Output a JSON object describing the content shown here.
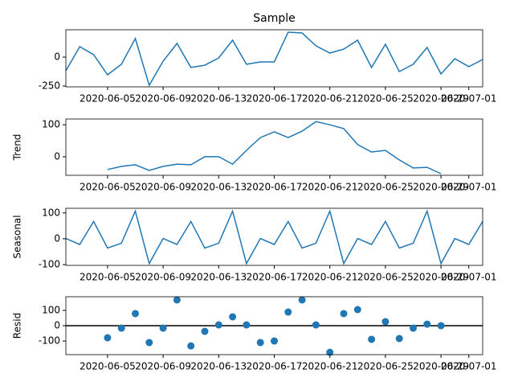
{
  "chart_data": [
    {
      "type": "line",
      "title": "Sample",
      "x": [
        "2020-06-02",
        "2020-06-03",
        "2020-06-04",
        "2020-06-05",
        "2020-06-06",
        "2020-06-07",
        "2020-06-08",
        "2020-06-09",
        "2020-06-10",
        "2020-06-11",
        "2020-06-12",
        "2020-06-13",
        "2020-06-14",
        "2020-06-15",
        "2020-06-16",
        "2020-06-17",
        "2020-06-18",
        "2020-06-19",
        "2020-06-20",
        "2020-06-21",
        "2020-06-22",
        "2020-06-23",
        "2020-06-24",
        "2020-06-25",
        "2020-06-26",
        "2020-06-27",
        "2020-06-28",
        "2020-06-29",
        "2020-06-30",
        "2020-07-01",
        "2020-07-02"
      ],
      "values": [
        -118,
        90,
        21,
        -153,
        -62,
        160,
        -243,
        -35,
        118,
        -90,
        -70,
        -7,
        146,
        -62,
        -42,
        -42,
        215,
        208,
        97,
        35,
        69,
        146,
        -90,
        111,
        -125,
        -62,
        83,
        -146,
        -14,
        -83,
        -21
      ],
      "color": "#1f77b4",
      "ylim": [
        -257,
        236
      ],
      "yticks": [
        -250,
        0
      ],
      "xlim": [
        "2020-06-02",
        "2020-07-02"
      ],
      "xticks": [
        "2020-06-05",
        "2020-06-09",
        "2020-06-13",
        "2020-06-17",
        "2020-06-21",
        "2020-06-25",
        "2020-06-29",
        "2020-07-01"
      ]
    },
    {
      "type": "line",
      "ylabel": "Trend",
      "x": [
        "2020-06-02",
        "2020-06-03",
        "2020-06-04",
        "2020-06-05",
        "2020-06-06",
        "2020-06-07",
        "2020-06-08",
        "2020-06-09",
        "2020-06-10",
        "2020-06-11",
        "2020-06-12",
        "2020-06-13",
        "2020-06-14",
        "2020-06-15",
        "2020-06-16",
        "2020-06-17",
        "2020-06-18",
        "2020-06-19",
        "2020-06-20",
        "2020-06-21",
        "2020-06-22",
        "2020-06-23",
        "2020-06-24",
        "2020-06-25",
        "2020-06-26",
        "2020-06-27",
        "2020-06-28",
        "2020-06-29",
        "2020-06-30",
        "2020-07-01",
        "2020-07-02"
      ],
      "values": [
        null,
        null,
        null,
        -40,
        -30,
        -25,
        -43,
        -30,
        -23,
        -25,
        0,
        0,
        -23,
        20,
        60,
        78,
        60,
        80,
        110,
        100,
        88,
        38,
        15,
        20,
        -10,
        -35,
        -33,
        -53,
        null,
        null,
        null
      ],
      "color": "#1f77b4",
      "ylim": [
        -58,
        118
      ],
      "yticks": [
        0,
        100
      ],
      "xlim": [
        "2020-06-02",
        "2020-07-02"
      ],
      "xticks": [
        "2020-06-05",
        "2020-06-09",
        "2020-06-13",
        "2020-06-17",
        "2020-06-21",
        "2020-06-25",
        "2020-06-29",
        "2020-07-01"
      ]
    },
    {
      "type": "line",
      "ylabel": "Seasonal",
      "x": [
        "2020-06-02",
        "2020-06-03",
        "2020-06-04",
        "2020-06-05",
        "2020-06-06",
        "2020-06-07",
        "2020-06-08",
        "2020-06-09",
        "2020-06-10",
        "2020-06-11",
        "2020-06-12",
        "2020-06-13",
        "2020-06-14",
        "2020-06-15",
        "2020-06-16",
        "2020-06-17",
        "2020-06-18",
        "2020-06-19",
        "2020-06-20",
        "2020-06-21",
        "2020-06-22",
        "2020-06-23",
        "2020-06-24",
        "2020-06-25",
        "2020-06-26",
        "2020-06-27",
        "2020-06-28",
        "2020-06-29",
        "2020-06-30",
        "2020-07-01",
        "2020-07-02"
      ],
      "values": [
        1,
        -22,
        67,
        -36,
        -17,
        107,
        -96,
        1,
        -22,
        67,
        -36,
        -17,
        107,
        -96,
        1,
        -22,
        67,
        -36,
        -17,
        107,
        -96,
        1,
        -22,
        67,
        -36,
        -17,
        107,
        -96,
        1,
        -22,
        67
      ],
      "color": "#1f77b4",
      "ylim": [
        -103,
        118
      ],
      "yticks": [
        -100,
        0,
        100
      ],
      "xlim": [
        "2020-06-02",
        "2020-07-02"
      ],
      "xticks": [
        "2020-06-05",
        "2020-06-09",
        "2020-06-13",
        "2020-06-17",
        "2020-06-21",
        "2020-06-25",
        "2020-06-29",
        "2020-07-01"
      ]
    },
    {
      "type": "scatter",
      "ylabel": "Resid",
      "x": [
        "2020-06-02",
        "2020-06-03",
        "2020-06-04",
        "2020-06-05",
        "2020-06-06",
        "2020-06-07",
        "2020-06-08",
        "2020-06-09",
        "2020-06-10",
        "2020-06-11",
        "2020-06-12",
        "2020-06-13",
        "2020-06-14",
        "2020-06-15",
        "2020-06-16",
        "2020-06-17",
        "2020-06-18",
        "2020-06-19",
        "2020-06-20",
        "2020-06-21",
        "2020-06-22",
        "2020-06-23",
        "2020-06-24",
        "2020-06-25",
        "2020-06-26",
        "2020-06-27",
        "2020-06-28",
        "2020-06-29",
        "2020-06-30",
        "2020-07-01",
        "2020-07-02"
      ],
      "values": [
        null,
        null,
        null,
        -79,
        -16,
        79,
        -110,
        -16,
        168,
        -132,
        -37,
        5,
        58,
        5,
        -110,
        -100,
        89,
        168,
        5,
        -174,
        79,
        105,
        -89,
        26,
        -84,
        -16,
        10,
        0,
        null,
        null,
        null
      ],
      "color": "#1f77b4",
      "hline": 0,
      "ylim": [
        -189,
        189
      ],
      "yticks": [
        -100,
        0,
        100
      ],
      "xlim": [
        "2020-06-02",
        "2020-07-02"
      ],
      "xticks": [
        "2020-06-05",
        "2020-06-09",
        "2020-06-13",
        "2020-06-17",
        "2020-06-21",
        "2020-06-25",
        "2020-06-29",
        "2020-07-01"
      ]
    }
  ]
}
